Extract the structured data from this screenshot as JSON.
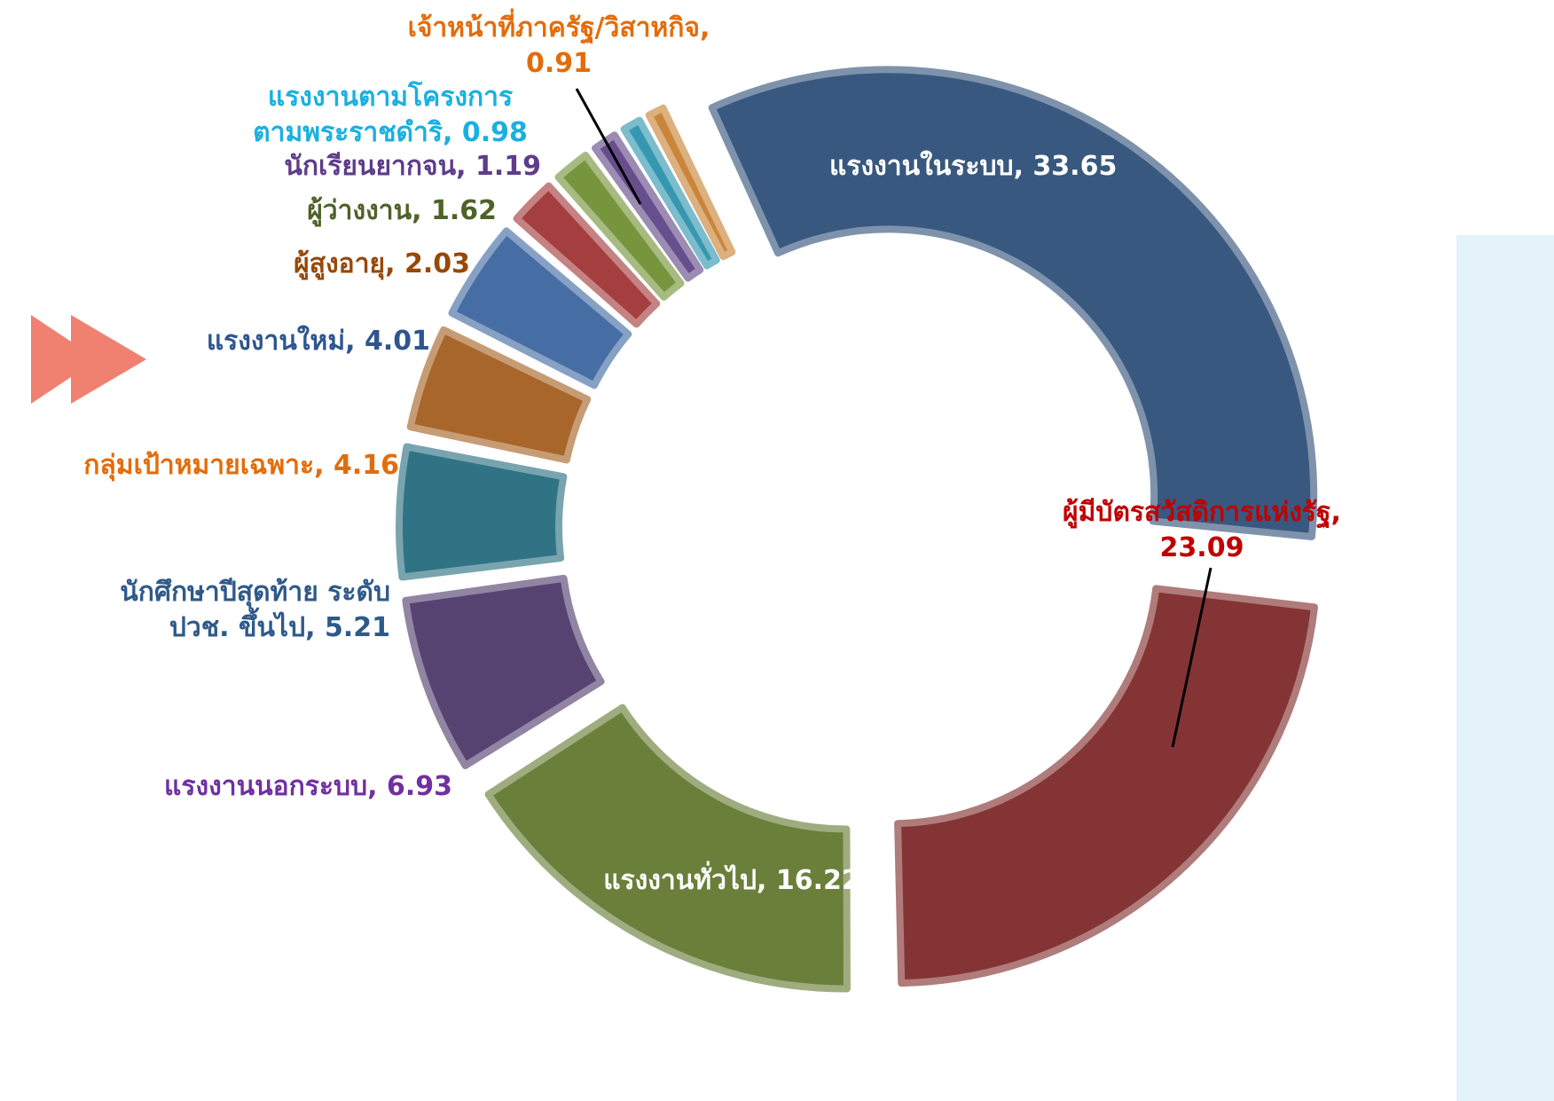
{
  "chart_data": {
    "type": "donut",
    "categories": [
      "แรงงานในระบบ",
      "ผู้มีบัตรสวัสดิการแห่งรัฐ",
      "แรงงานทั่วไป",
      "แรงงานนอกระบบ",
      "นักศึกษาปีสุดท้าย ระดับ ปวช. ขึ้นไป",
      "กลุ่มเป้าหมายเฉพาะ",
      "แรงงานใหม่",
      "ผู้สูงอายุ",
      "ผู้ว่างงาน",
      "นักเรียนยากจน",
      "แรงงานตามโครงการตามพระราชดำริ",
      "เจ้าหน้าที่ภาครัฐ/วิสาหกิจ"
    ],
    "values": [
      33.65,
      23.09,
      16.22,
      6.93,
      5.21,
      4.16,
      4.01,
      2.03,
      1.62,
      1.19,
      0.98,
      0.91
    ],
    "colors": [
      "#38587f",
      "#843434",
      "#6a7f3a",
      "#574372",
      "#2f7384",
      "#a8662a",
      "#466ea4",
      "#a53f3f",
      "#77953d",
      "#674e8c",
      "#3698b0",
      "#c9863a"
    ],
    "label_colors": [
      "#ffffff",
      "#c00000",
      "#ffffff",
      "#7030a0",
      "#2e5a8a",
      "#e36c0a",
      "#2e5590",
      "#974806",
      "#4f6228",
      "#5f3c8a",
      "#1ab0e0",
      "#e36c0a"
    ]
  }
}
